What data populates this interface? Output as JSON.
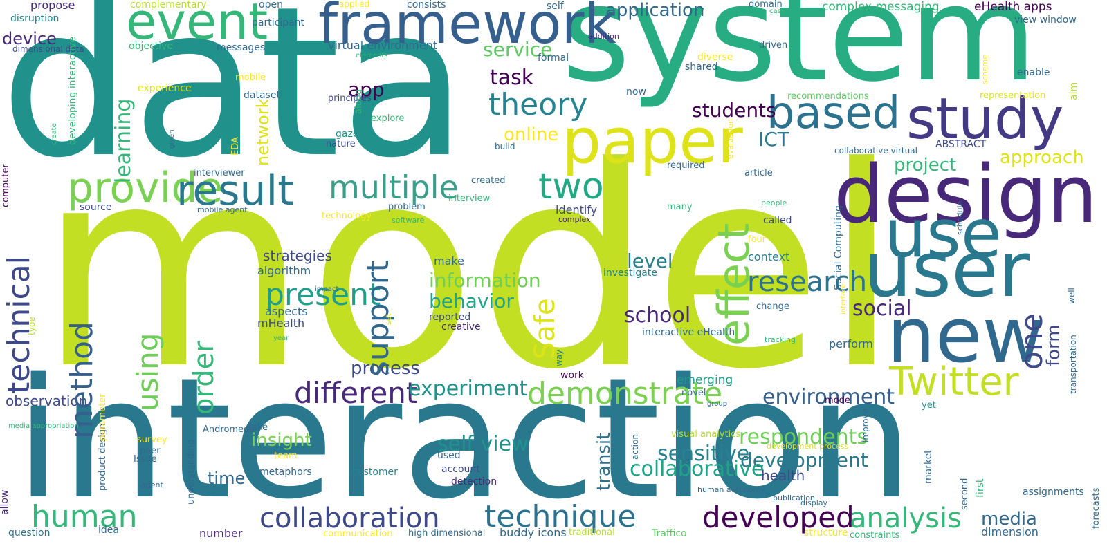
{
  "colors": {
    "background": "#ffffff",
    "palette": [
      "#440154",
      "#3e4989",
      "#31688e",
      "#26828e",
      "#1f9e89",
      "#35b779",
      "#6ece58",
      "#b5de2b",
      "#fde725"
    ]
  },
  "words": [
    "model",
    "interaction",
    "data",
    "system",
    "design",
    "user",
    "use",
    "new",
    "paper",
    "study",
    "framework",
    "event",
    "based",
    "Twitter",
    "provide",
    "result",
    "two",
    "multiple",
    "theory",
    "human",
    "technique",
    "developed",
    "collaboration",
    "analysis",
    "different",
    "demonstrate",
    "social",
    "research",
    "present",
    "app",
    "ICT",
    "experiment",
    "information",
    "behavior",
    "environment",
    "service",
    "respondents",
    "development",
    "sensitive",
    "collaborative",
    "self view",
    "school",
    "level",
    "task",
    "application",
    "project",
    "approach",
    "process",
    "media",
    "students",
    "online",
    "insight",
    "time",
    "health",
    "observation",
    "effect",
    "support",
    "Safe",
    "technical",
    "method",
    "using",
    "order",
    "one",
    "form",
    "learning",
    "network",
    "transit",
    "strategies",
    "algorithm",
    "aspects",
    "mHealth",
    "make",
    "reported",
    "creative",
    "investigate",
    "interactive eHealth",
    "emerging",
    "complex messaging",
    "eHealth apps",
    "virtual environment",
    "device",
    "propose",
    "disruption",
    "experience",
    "dataset",
    "principles",
    "explore",
    "gaze",
    "nature",
    "build",
    "ABSTRACT",
    "required",
    "article",
    "many",
    "called",
    "four",
    "context",
    "change",
    "perform",
    "work",
    "identify",
    "problem",
    "source",
    "interviewer",
    "interview",
    "created",
    "used",
    "account",
    "detection",
    "customer",
    "metaphors",
    "team",
    "take",
    "Andromeda",
    "peer",
    "Issue",
    "survey",
    "agent",
    "idea",
    "question",
    "number",
    "buddy icons",
    "high dimensional",
    "communication",
    "traditional",
    "Traffico",
    "structure",
    "dimension",
    "constraints",
    "assignments",
    "view window",
    "enable",
    "representation",
    "collaborative virtual",
    "yet",
    "mode",
    "novel",
    "group",
    "visual analytics",
    "development process",
    "human autonomy",
    "publication",
    "display",
    "tracking",
    "people",
    "complex",
    "mobile agent",
    "software",
    "technology",
    "year",
    "impact",
    "participant",
    "complementary",
    "objective",
    "mobile",
    "messages",
    "open",
    "applied",
    "consists",
    "self",
    "domain",
    "case",
    "addition",
    "driven",
    "formal",
    "diverse",
    "shared",
    "now",
    "recommendations",
    "media appropriation",
    "elements",
    "dimensional data",
    "developing interactive",
    "create",
    "given",
    "EDA",
    "along",
    "computer",
    "type",
    "allow",
    "understanding",
    "product design",
    "parameter",
    "set",
    "way",
    "Social Computing",
    "evaluation",
    "schedule",
    "interface",
    "action",
    "improve",
    "market",
    "second",
    "first",
    "forecasts",
    "well",
    "transportation",
    "aim",
    "scheme",
    "action research"
  ]
}
